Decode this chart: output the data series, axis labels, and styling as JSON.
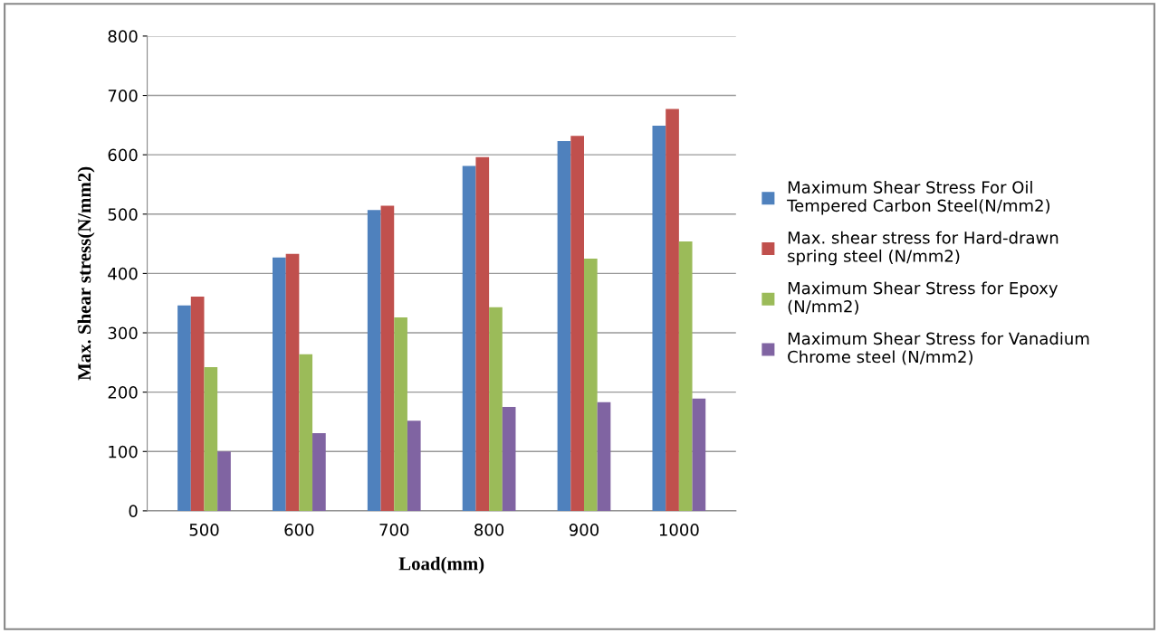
{
  "chart_data": {
    "type": "bar",
    "xlabel": "Load(mm)",
    "ylabel": "Max. Shear stress(N/mm2)",
    "categories": [
      "500",
      "600",
      "700",
      "800",
      "900",
      "1000"
    ],
    "series": [
      {
        "name": "Maximum Shear Stress For Oil Tempered Carbon Steel(N/mm2)",
        "color": "#4f81bd",
        "values": [
          346,
          427,
          507,
          581,
          623,
          649
        ]
      },
      {
        "name": "Max. shear stress for Hard-drawn spring steel (N/mm2)",
        "color": "#c0504d",
        "values": [
          361,
          433,
          514,
          596,
          632,
          677
        ]
      },
      {
        "name": "Maximum Shear Stress for Epoxy (N/mm2)",
        "color": "#9bbb59",
        "values": [
          242,
          264,
          326,
          343,
          425,
          454
        ]
      },
      {
        "name": "Maximum Shear Stress for Vanadium Chrome steel (N/mm2)",
        "color": "#8064a2",
        "values": [
          100,
          131,
          152,
          175,
          183,
          189
        ]
      }
    ],
    "ylim": [
      0,
      800
    ],
    "yticks": [
      0,
      100,
      200,
      300,
      400,
      500,
      600,
      700,
      800
    ],
    "grid": "y",
    "legend": "right"
  }
}
